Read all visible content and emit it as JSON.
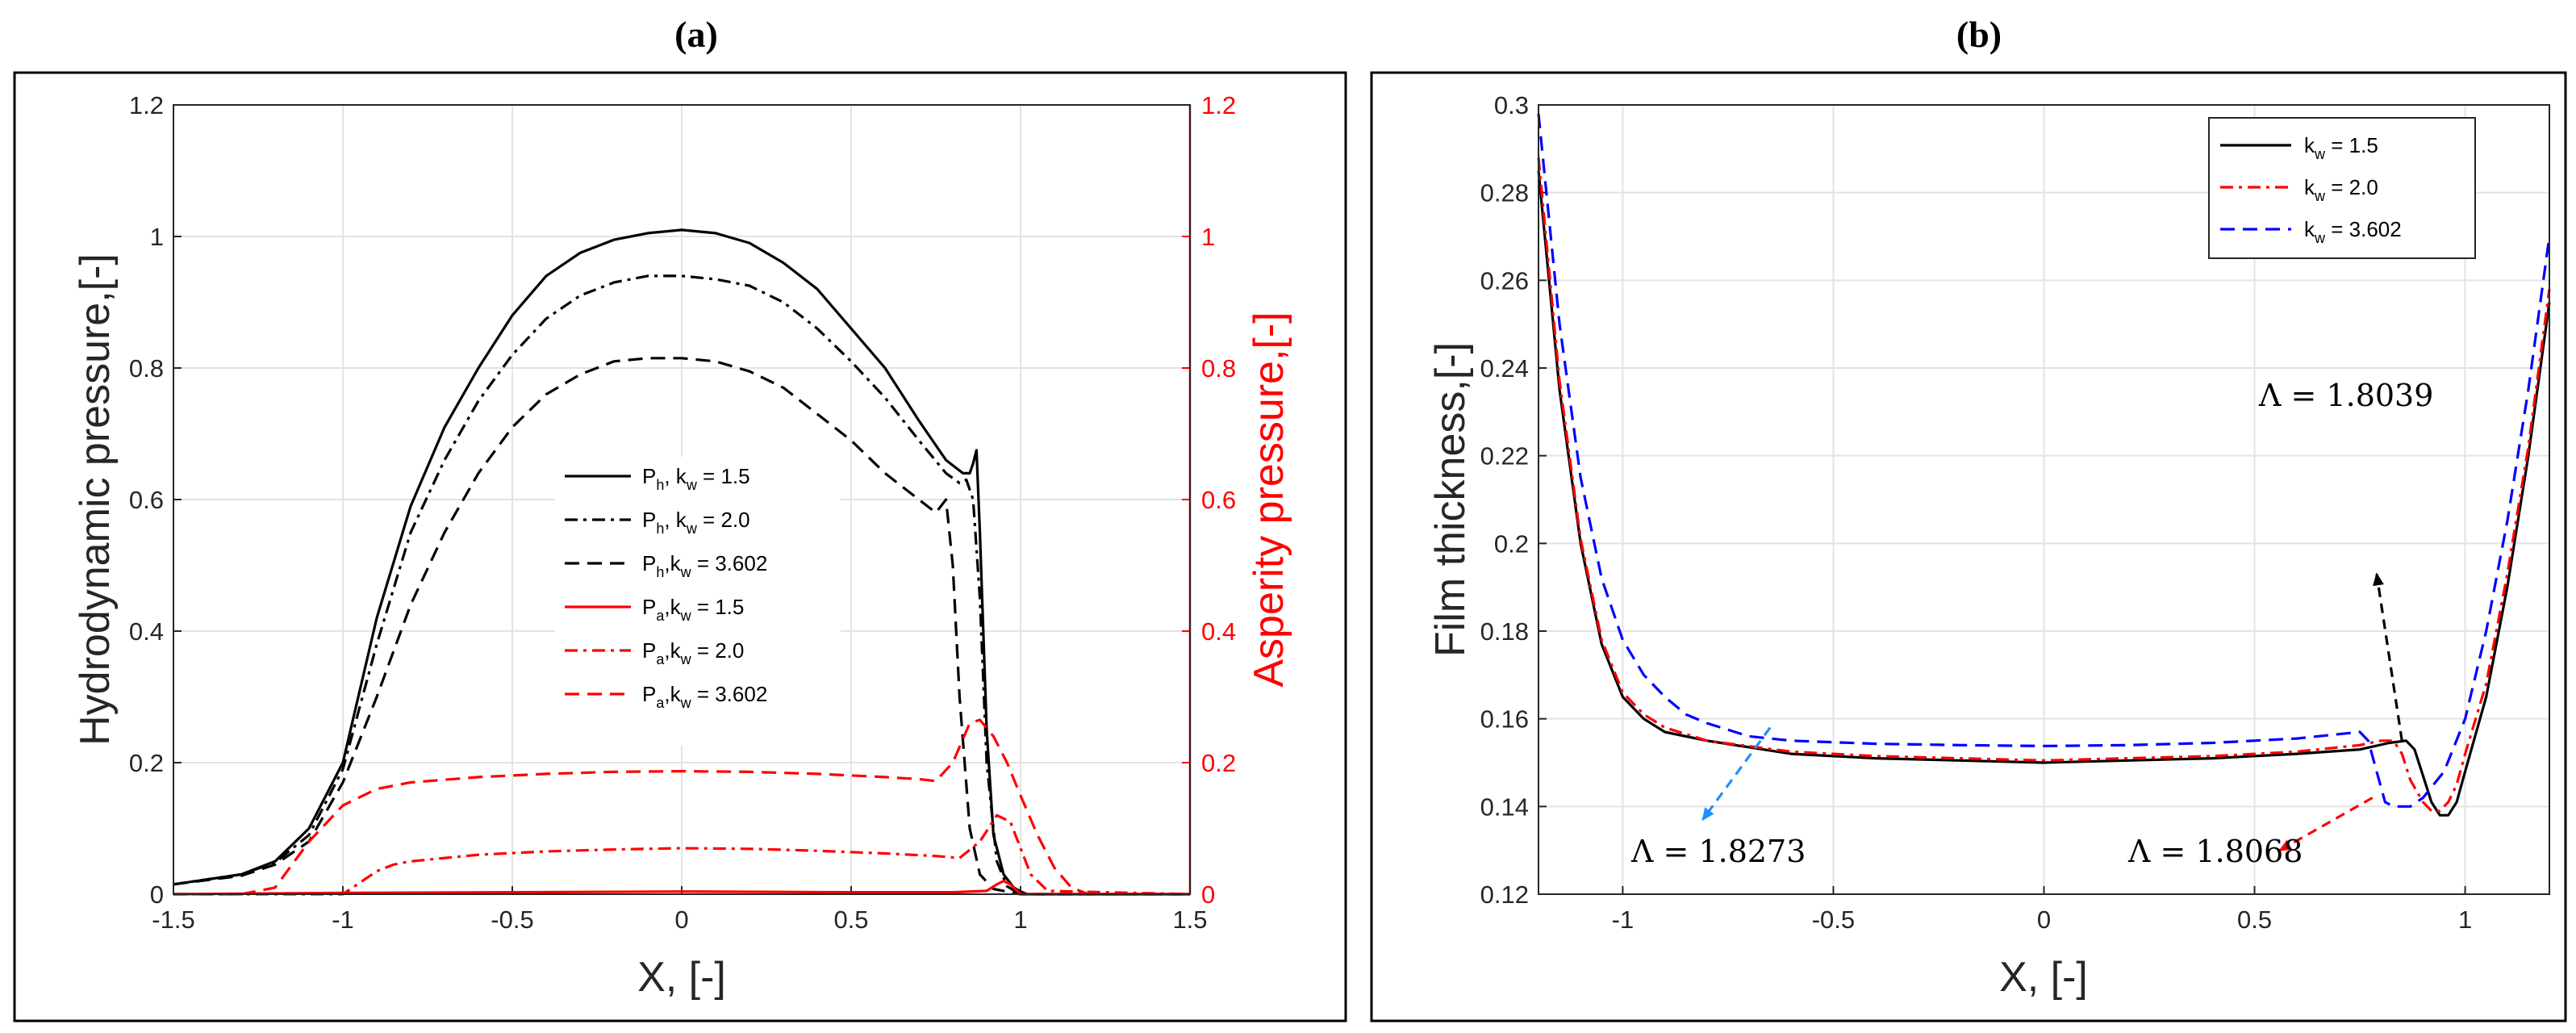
{
  "chart_data": [
    {
      "type": "line",
      "panel_label": "(a)",
      "xlabel": "X, [-]",
      "ylabel": "Hydrodynamic pressure,[-]",
      "ylabel_right": "Asperity pressure,[-]",
      "xlim": [
        -1.5,
        1.5
      ],
      "ylim": [
        0,
        1.2
      ],
      "ylim_right": [
        0,
        1.2
      ],
      "xticks": [
        "-1.5",
        "-1",
        "-0.5",
        "0",
        "0.5",
        "1",
        "1.5"
      ],
      "yticks": [
        "0",
        "0.2",
        "0.4",
        "0.6",
        "0.8",
        "1",
        "1.2"
      ],
      "yticks_right": [
        "0",
        "0.2",
        "0.4",
        "0.6",
        "0.8",
        "1",
        "1.2"
      ],
      "legend_position": "center",
      "series": [
        {
          "name": "Ph, kw = 1.5",
          "legend_main": "P",
          "legend_sub1": "h",
          "legend_mid": ", k",
          "legend_sub2": "w",
          "legend_tail": " = 1.5",
          "color": "#000000",
          "dash": "solid",
          "x": [
            -1.5,
            -1.3,
            -1.2,
            -1.1,
            -1.0,
            -0.9,
            -0.8,
            -0.7,
            -0.6,
            -0.5,
            -0.4,
            -0.3,
            -0.2,
            -0.1,
            0.0,
            0.1,
            0.2,
            0.3,
            0.4,
            0.5,
            0.6,
            0.7,
            0.78,
            0.83,
            0.85,
            0.86,
            0.87,
            0.88,
            0.9,
            0.92,
            0.95,
            0.98,
            1.0,
            1.02,
            1.5
          ],
          "y": [
            0.015,
            0.03,
            0.05,
            0.1,
            0.2,
            0.42,
            0.59,
            0.71,
            0.8,
            0.88,
            0.94,
            0.975,
            0.995,
            1.005,
            1.01,
            1.005,
            0.99,
            0.96,
            0.92,
            0.86,
            0.8,
            0.72,
            0.66,
            0.64,
            0.64,
            0.655,
            0.675,
            0.55,
            0.25,
            0.09,
            0.03,
            0.01,
            0.004,
            0.0,
            0.0
          ]
        },
        {
          "name": "Ph, kw = 2.0",
          "legend_main": "P",
          "legend_sub1": "h",
          "legend_mid": ", k",
          "legend_sub2": "w",
          "legend_tail": " = 2.0",
          "color": "#000000",
          "dash": "dashdot",
          "x": [
            -1.5,
            -1.3,
            -1.2,
            -1.1,
            -1.0,
            -0.9,
            -0.8,
            -0.7,
            -0.6,
            -0.5,
            -0.4,
            -0.3,
            -0.2,
            -0.1,
            0.0,
            0.1,
            0.2,
            0.3,
            0.4,
            0.5,
            0.6,
            0.7,
            0.78,
            0.82,
            0.84,
            0.86,
            0.88,
            0.9,
            0.93,
            0.96,
            1.0,
            1.5
          ],
          "y": [
            0.015,
            0.03,
            0.048,
            0.09,
            0.19,
            0.38,
            0.55,
            0.66,
            0.75,
            0.82,
            0.875,
            0.91,
            0.93,
            0.94,
            0.94,
            0.935,
            0.925,
            0.9,
            0.86,
            0.81,
            0.755,
            0.69,
            0.64,
            0.625,
            0.63,
            0.6,
            0.45,
            0.2,
            0.05,
            0.012,
            0.0,
            0.0
          ]
        },
        {
          "name": "Ph,kw = 3.602",
          "legend_main": "P",
          "legend_sub1": "h",
          "legend_mid": ",k",
          "legend_sub2": "w",
          "legend_tail": " = 3.602",
          "color": "#000000",
          "dash": "dashed",
          "x": [
            -1.5,
            -1.3,
            -1.2,
            -1.1,
            -1.0,
            -0.9,
            -0.8,
            -0.7,
            -0.6,
            -0.5,
            -0.4,
            -0.3,
            -0.2,
            -0.1,
            0.0,
            0.1,
            0.2,
            0.3,
            0.4,
            0.5,
            0.6,
            0.7,
            0.75,
            0.78,
            0.8,
            0.82,
            0.85,
            0.88,
            0.92,
            1.0,
            1.5
          ],
          "y": [
            0.015,
            0.028,
            0.045,
            0.08,
            0.17,
            0.3,
            0.44,
            0.55,
            0.64,
            0.71,
            0.76,
            0.79,
            0.81,
            0.815,
            0.815,
            0.81,
            0.795,
            0.77,
            0.73,
            0.69,
            0.64,
            0.6,
            0.58,
            0.6,
            0.5,
            0.3,
            0.1,
            0.03,
            0.008,
            0.0,
            0.0
          ]
        },
        {
          "name": "Pa,kw = 1.5",
          "legend_main": "P",
          "legend_sub1": "a",
          "legend_mid": ",k",
          "legend_sub2": "w",
          "legend_tail": " = 1.5",
          "color": "#ff0000",
          "dash": "solid",
          "axis": "right",
          "x": [
            -1.5,
            -1.0,
            -0.5,
            0.0,
            0.5,
            0.8,
            0.9,
            0.93,
            0.95,
            0.97,
            1.0,
            1.5
          ],
          "y": [
            0.0,
            0.002,
            0.003,
            0.004,
            0.003,
            0.003,
            0.005,
            0.015,
            0.02,
            0.015,
            0.0,
            0.0
          ]
        },
        {
          "name": "Pa,kw = 2.0",
          "legend_main": "P",
          "legend_sub1": "a",
          "legend_mid": ",k",
          "legend_sub2": "w",
          "legend_tail": " = 2.0",
          "color": "#ff0000",
          "dash": "dashdot",
          "axis": "right",
          "x": [
            -1.5,
            -1.0,
            -0.9,
            -0.85,
            -0.8,
            -0.6,
            -0.4,
            -0.2,
            0.0,
            0.2,
            0.4,
            0.6,
            0.75,
            0.82,
            0.88,
            0.93,
            0.97,
            1.0,
            1.03,
            1.08,
            1.5
          ],
          "y": [
            0.0,
            0.0,
            0.035,
            0.045,
            0.05,
            0.06,
            0.065,
            0.068,
            0.07,
            0.069,
            0.066,
            0.062,
            0.058,
            0.055,
            0.08,
            0.12,
            0.11,
            0.07,
            0.03,
            0.005,
            0.0
          ]
        },
        {
          "name": "Pa,kw = 3.602",
          "legend_main": "P",
          "legend_sub1": "a",
          "legend_mid": ",k",
          "legend_sub2": "w",
          "legend_tail": " = 3.602",
          "color": "#ff0000",
          "dash": "dashed",
          "axis": "right",
          "x": [
            -1.5,
            -1.3,
            -1.2,
            -1.1,
            -1.0,
            -0.9,
            -0.8,
            -0.6,
            -0.4,
            -0.2,
            0.0,
            0.2,
            0.4,
            0.6,
            0.7,
            0.75,
            0.8,
            0.85,
            0.88,
            0.92,
            0.96,
            1.0,
            1.05,
            1.1,
            1.15,
            1.2,
            1.5
          ],
          "y": [
            0.0,
            0.0,
            0.01,
            0.08,
            0.135,
            0.16,
            0.17,
            0.178,
            0.183,
            0.186,
            0.187,
            0.186,
            0.183,
            0.178,
            0.175,
            0.172,
            0.2,
            0.26,
            0.265,
            0.24,
            0.2,
            0.15,
            0.09,
            0.04,
            0.01,
            0.0,
            0.0
          ]
        }
      ]
    },
    {
      "type": "line",
      "panel_label": "(b)",
      "xlabel": "X, [-]",
      "ylabel": "Film thickness,[-]",
      "xlim": [
        -1.2,
        1.2
      ],
      "ylim": [
        0.12,
        0.3
      ],
      "xticks": [
        "-1",
        "-0.5",
        "0",
        "0.5",
        "1"
      ],
      "xtick_values": [
        -1,
        -0.5,
        0,
        0.5,
        1
      ],
      "yticks": [
        "0.12",
        "0.14",
        "0.16",
        "0.18",
        "0.2",
        "0.22",
        "0.24",
        "0.26",
        "0.28",
        "0.3"
      ],
      "legend_position": "top-right",
      "series": [
        {
          "name": "kw = 1.5",
          "legend_main": "k",
          "legend_sub": "w",
          "legend_tail": " = 1.5",
          "color": "#000000",
          "dash": "solid",
          "x": [
            -1.2,
            -1.15,
            -1.1,
            -1.05,
            -1.0,
            -0.95,
            -0.9,
            -0.8,
            -0.6,
            -0.4,
            -0.2,
            0.0,
            0.2,
            0.4,
            0.6,
            0.75,
            0.82,
            0.86,
            0.88,
            0.9,
            0.92,
            0.94,
            0.96,
            0.98,
            1.0,
            1.05,
            1.1,
            1.15,
            1.2
          ],
          "y": [
            0.285,
            0.235,
            0.2,
            0.177,
            0.165,
            0.16,
            0.157,
            0.155,
            0.152,
            0.151,
            0.1505,
            0.15,
            0.1505,
            0.151,
            0.152,
            0.153,
            0.1545,
            0.155,
            0.153,
            0.147,
            0.141,
            0.138,
            0.138,
            0.141,
            0.148,
            0.165,
            0.19,
            0.22,
            0.255
          ]
        },
        {
          "name": "kw = 2.0",
          "legend_main": "k",
          "legend_sub": "w",
          "legend_tail": " = 2.0",
          "color": "#ff0000",
          "dash": "dashdot",
          "x": [
            -1.2,
            -1.15,
            -1.1,
            -1.05,
            -1.0,
            -0.95,
            -0.9,
            -0.8,
            -0.6,
            -0.4,
            -0.2,
            0.0,
            0.2,
            0.4,
            0.6,
            0.75,
            0.8,
            0.83,
            0.85,
            0.87,
            0.9,
            0.92,
            0.94,
            0.96,
            0.98,
            1.0,
            1.05,
            1.1,
            1.15,
            1.2
          ],
          "y": [
            0.288,
            0.237,
            0.201,
            0.178,
            0.166,
            0.161,
            0.158,
            0.155,
            0.1525,
            0.1515,
            0.151,
            0.1505,
            0.151,
            0.1515,
            0.1525,
            0.154,
            0.155,
            0.155,
            0.152,
            0.146,
            0.141,
            0.139,
            0.139,
            0.141,
            0.145,
            0.152,
            0.168,
            0.193,
            0.222,
            0.258
          ]
        },
        {
          "name": "kw = 3.602",
          "legend_main": "k",
          "legend_sub": "w",
          "legend_tail": " = 3.602",
          "color": "#0000ff",
          "dash": "dashed",
          "x": [
            -1.2,
            -1.15,
            -1.1,
            -1.05,
            -1.0,
            -0.95,
            -0.9,
            -0.85,
            -0.8,
            -0.7,
            -0.6,
            -0.4,
            -0.2,
            0.0,
            0.2,
            0.4,
            0.6,
            0.7,
            0.75,
            0.77,
            0.79,
            0.81,
            0.83,
            0.85,
            0.87,
            0.9,
            0.95,
            1.0,
            1.05,
            1.1,
            1.15,
            1.2
          ],
          "y": [
            0.298,
            0.25,
            0.215,
            0.192,
            0.178,
            0.17,
            0.165,
            0.161,
            0.159,
            0.156,
            0.155,
            0.1543,
            0.154,
            0.1538,
            0.154,
            0.1545,
            0.1555,
            0.1565,
            0.157,
            0.155,
            0.148,
            0.141,
            0.14,
            0.14,
            0.14,
            0.142,
            0.148,
            0.16,
            0.18,
            0.205,
            0.235,
            0.27
          ]
        }
      ],
      "annotations": [
        {
          "text": "Λ = 1.8039",
          "color": "#000000",
          "x": 0.85,
          "y": 0.155,
          "tx": 0.79,
          "ty": 0.193
        },
        {
          "text": "Λ = 1.8273",
          "color": "#1e90ff",
          "x": -0.65,
          "y": 0.158,
          "tx": -0.81,
          "ty": 0.137
        },
        {
          "text": "Λ = 1.8068",
          "color": "#ff0000",
          "x": 0.78,
          "y": 0.142,
          "tx": 0.56,
          "ty": 0.13
        }
      ]
    }
  ]
}
